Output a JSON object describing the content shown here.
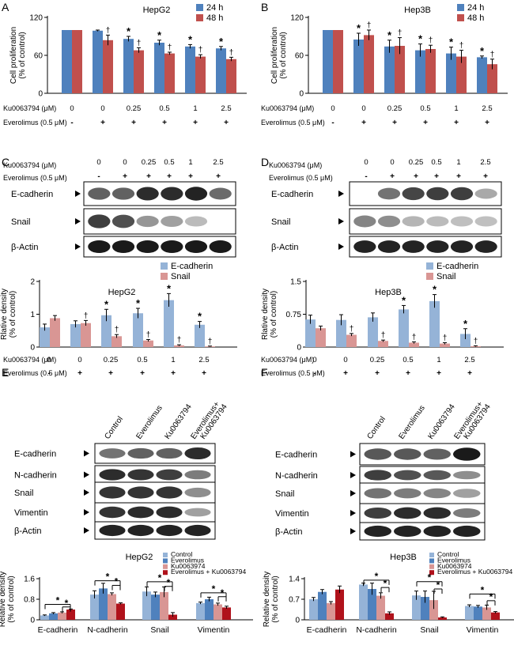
{
  "figure": {
    "panel_letters": [
      "A",
      "B",
      "C",
      "D",
      "E",
      "F"
    ],
    "row_labels": {
      "ku": "Ku0063794 (μM)",
      "eve": "Everolimus (0.5 μM)"
    },
    "ku_values": [
      "0",
      "0",
      "0.25",
      "0.5",
      "1",
      "2.5"
    ],
    "eve_values": [
      "-",
      "+",
      "+",
      "+",
      "+",
      "+"
    ],
    "sig_star": "*",
    "sig_dagger": "†",
    "blot_proteins_cd": [
      "E-cadherin",
      "Snail",
      "β-Actin"
    ],
    "blot_proteins_ef": [
      "E-cadherin",
      "N-cadherin",
      "Snail",
      "Vimentin",
      "β-Actin"
    ],
    "ef_conditions": [
      "Control",
      "Everolimus",
      "Ku0063794",
      "Everolimus+ Ku0063794"
    ],
    "prolif_ylabel": [
      "Cell proliferation",
      "(% of control)"
    ],
    "density_ylabel_cd": [
      "Rlative density",
      "(% of control)"
    ],
    "density_ylabel_ef": [
      "Relative density",
      "(% of control)"
    ],
    "colors": {
      "blue": "#4f81bd",
      "red": "#c0504d",
      "lightblue": "#95b3d7",
      "pink": "#d99694",
      "navy": "#1f4e9a",
      "darkred": "#b0121b"
    }
  },
  "chart_data": [
    {
      "panel": "A",
      "type": "bar",
      "title": "HepG2",
      "ylabel": "Cell proliferation (% of control)",
      "ylim": [
        0,
        120
      ],
      "yticks": [
        0,
        60,
        120
      ],
      "series": [
        {
          "name": "24 h",
          "color": "#4f81bd",
          "values": [
            100,
            99,
            86,
            80,
            74,
            71
          ],
          "errors": [
            0,
            1,
            4,
            4,
            3,
            3
          ],
          "marks": [
            "",
            "",
            "*",
            "*",
            "*",
            "*"
          ]
        },
        {
          "name": "48 h",
          "color": "#c0504d",
          "values": [
            100,
            84,
            68,
            63,
            58,
            54
          ],
          "errors": [
            0,
            8,
            4,
            2,
            3,
            3
          ],
          "marks": [
            "",
            "†",
            "†",
            "†",
            "†",
            "†"
          ]
        }
      ]
    },
    {
      "panel": "B",
      "type": "bar",
      "title": "Hep3B",
      "ylabel": "Cell proliferation (% of control)",
      "ylim": [
        0,
        120
      ],
      "yticks": [
        0,
        60,
        120
      ],
      "series": [
        {
          "name": "24 h",
          "color": "#4f81bd",
          "values": [
            100,
            85,
            74,
            68,
            63,
            57
          ],
          "errors": [
            0,
            10,
            10,
            10,
            10,
            2
          ],
          "marks": [
            "",
            "*",
            "*",
            "*",
            "*",
            "*"
          ]
        },
        {
          "name": "48 h",
          "color": "#c0504d",
          "values": [
            100,
            92,
            75,
            70,
            58,
            46
          ],
          "errors": [
            0,
            8,
            13,
            6,
            10,
            8
          ],
          "marks": [
            "",
            "†",
            "†",
            "†",
            "†",
            "†"
          ]
        }
      ]
    },
    {
      "panel": "C",
      "type": "bar",
      "title": "HepG2",
      "ylabel": "Rlative density (% of control)",
      "ylim": [
        0,
        2
      ],
      "yticks": [
        0,
        1,
        2
      ],
      "series": [
        {
          "name": "E-cadherin",
          "color": "#95b3d7",
          "values": [
            0.6,
            0.7,
            0.97,
            1.03,
            1.43,
            0.68
          ],
          "errors": [
            0.1,
            0.1,
            0.18,
            0.15,
            0.2,
            0.1
          ],
          "marks": [
            "",
            "",
            "*",
            "*",
            "*",
            "*"
          ]
        },
        {
          "name": "Snail",
          "color": "#d99694",
          "values": [
            0.88,
            0.73,
            0.33,
            0.2,
            0.05,
            0.02
          ],
          "errors": [
            0.08,
            0.08,
            0.05,
            0.03,
            0.02,
            0.01
          ],
          "marks": [
            "",
            "†",
            "†",
            "†",
            "†",
            "†"
          ]
        }
      ]
    },
    {
      "panel": "D",
      "type": "bar",
      "title": "Hep3B",
      "ylabel": "Rlative density (% of control)",
      "ylim": [
        0,
        1.5
      ],
      "yticks": [
        0,
        0.75,
        1.5
      ],
      "series": [
        {
          "name": "E-cadherin",
          "color": "#95b3d7",
          "values": [
            0.63,
            0.62,
            0.68,
            0.86,
            1.05,
            0.3
          ],
          "errors": [
            0.1,
            0.12,
            0.1,
            0.09,
            0.15,
            0.12
          ],
          "marks": [
            "",
            "",
            "",
            "*",
            "*",
            "*"
          ]
        },
        {
          "name": "Snail",
          "color": "#d99694",
          "values": [
            0.43,
            0.28,
            0.14,
            0.1,
            0.08,
            0.02
          ],
          "errors": [
            0.05,
            0.03,
            0.02,
            0.02,
            0.02,
            0.01
          ],
          "marks": [
            "",
            "†",
            "†",
            "†",
            "†",
            "†"
          ]
        }
      ]
    },
    {
      "panel": "E",
      "type": "bar",
      "title": "HepG2",
      "ylabel": "Relative density (% of control)",
      "ylim": [
        0,
        1.6
      ],
      "yticks": [
        0,
        0.8,
        1.6
      ],
      "categories": [
        "E-cadherin",
        "N-cadherin",
        "Snail",
        "Vimentin"
      ],
      "series": [
        {
          "name": "Control",
          "color": "#95b3d7",
          "values": [
            0.17,
            0.98,
            1.1,
            0.65
          ],
          "errors": [
            0.02,
            0.15,
            0.18,
            0.04
          ]
        },
        {
          "name": "Everolimus",
          "color": "#4f81bd",
          "values": [
            0.25,
            1.22,
            0.98,
            0.8
          ],
          "errors": [
            0.03,
            0.2,
            0.1,
            0.08
          ]
        },
        {
          "name": "Ku0063974",
          "color": "#d99694",
          "values": [
            0.28,
            1.0,
            1.08,
            0.6
          ],
          "errors": [
            0.03,
            0.05,
            0.2,
            0.05
          ]
        },
        {
          "name": "Everolimus + Ku0063794",
          "color": "#b0121b",
          "values": [
            0.4,
            0.63,
            0.2,
            0.48
          ],
          "errors": [
            0.02,
            0.03,
            0.08,
            0.05
          ]
        }
      ]
    },
    {
      "panel": "F",
      "type": "bar",
      "title": "Hep3B",
      "ylabel": "Relative density (% of control)",
      "ylim": [
        0,
        1.4
      ],
      "yticks": [
        0,
        0.7,
        1.4
      ],
      "categories": [
        "E-cadherin",
        "N-cadherin",
        "Snail",
        "Vimentin"
      ],
      "series": [
        {
          "name": "Control",
          "color": "#95b3d7",
          "values": [
            0.7,
            1.2,
            0.83,
            0.47
          ],
          "errors": [
            0.06,
            0.05,
            0.15,
            0.04
          ]
        },
        {
          "name": "Everolimus",
          "color": "#4f81bd",
          "values": [
            0.95,
            1.05,
            0.78,
            0.45
          ],
          "errors": [
            0.08,
            0.2,
            0.2,
            0.04
          ]
        },
        {
          "name": "Ku0063974",
          "color": "#d99694",
          "values": [
            0.57,
            0.82,
            0.67,
            0.42
          ],
          "errors": [
            0.05,
            0.1,
            0.3,
            0.08
          ]
        },
        {
          "name": "Everolimus + Ku0063794",
          "color": "#b0121b",
          "values": [
            1.03,
            0.22,
            0.08,
            0.25
          ],
          "errors": [
            0.12,
            0.05,
            0.02,
            0.03
          ]
        }
      ]
    }
  ]
}
